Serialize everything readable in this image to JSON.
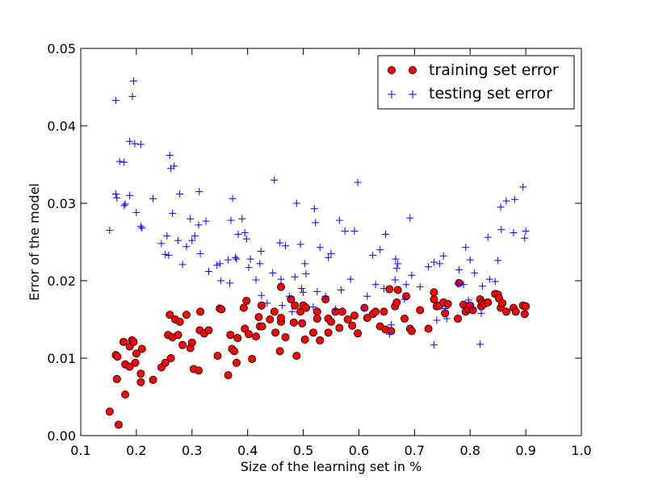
{
  "chart_data": {
    "type": "scatter",
    "title": "",
    "xlabel": "Size of the learning set in %",
    "ylabel": "Error of the model",
    "xlim": [
      0.1,
      1.0
    ],
    "ylim": [
      0.0,
      0.05
    ],
    "xticks": [
      0.1,
      0.2,
      0.3,
      0.4,
      0.5,
      0.6,
      0.7,
      0.8,
      0.9,
      1.0
    ],
    "yticks": [
      0.0,
      0.01,
      0.02,
      0.03,
      0.04,
      0.05
    ],
    "xtick_labels": [
      "0.1",
      "0.2",
      "0.3",
      "0.4",
      "0.5",
      "0.6",
      "0.7",
      "0.8",
      "0.9",
      "1.0"
    ],
    "ytick_labels": [
      "0.00",
      "0.01",
      "0.02",
      "0.03",
      "0.04",
      "0.05"
    ],
    "grid": false,
    "legend_position": "top-right",
    "series": [
      {
        "name": "training set error",
        "marker": "circle",
        "color": "#ff0000",
        "points": [
          [
            0.152,
            0.0031
          ],
          [
            0.168,
            0.0014
          ],
          [
            0.165,
            0.0073
          ],
          [
            0.163,
            0.0104
          ],
          [
            0.166,
            0.0102
          ],
          [
            0.177,
            0.0121
          ],
          [
            0.18,
            0.0053
          ],
          [
            0.18,
            0.0092
          ],
          [
            0.188,
            0.0115
          ],
          [
            0.188,
            0.0089
          ],
          [
            0.192,
            0.0123
          ],
          [
            0.195,
            0.0121
          ],
          [
            0.198,
            0.0094
          ],
          [
            0.2,
            0.0106
          ],
          [
            0.208,
            0.0069
          ],
          [
            0.208,
            0.008
          ],
          [
            0.21,
            0.0112
          ],
          [
            0.23,
            0.0072
          ],
          [
            0.245,
            0.0088
          ],
          [
            0.252,
            0.0094
          ],
          [
            0.257,
            0.013
          ],
          [
            0.26,
            0.0156
          ],
          [
            0.262,
            0.01
          ],
          [
            0.265,
            0.0127
          ],
          [
            0.27,
            0.015
          ],
          [
            0.275,
            0.013
          ],
          [
            0.278,
            0.0147
          ],
          [
            0.283,
            0.0117
          ],
          [
            0.29,
            0.0156
          ],
          [
            0.297,
            0.0113
          ],
          [
            0.3,
            0.012
          ],
          [
            0.303,
            0.0086
          ],
          [
            0.312,
            0.0084
          ],
          [
            0.314,
            0.0136
          ],
          [
            0.315,
            0.016
          ],
          [
            0.322,
            0.0132
          ],
          [
            0.33,
            0.0136
          ],
          [
            0.346,
            0.0103
          ],
          [
            0.35,
            0.0164
          ],
          [
            0.353,
            0.0163
          ],
          [
            0.365,
            0.0078
          ],
          [
            0.369,
            0.013
          ],
          [
            0.372,
            0.0112
          ],
          [
            0.376,
            0.0109
          ],
          [
            0.38,
            0.0094
          ],
          [
            0.382,
            0.0126
          ],
          [
            0.393,
            0.0165
          ],
          [
            0.395,
            0.0138
          ],
          [
            0.398,
            0.0174
          ],
          [
            0.402,
            0.0131
          ],
          [
            0.408,
            0.0099
          ],
          [
            0.415,
            0.0128
          ],
          [
            0.42,
            0.0153
          ],
          [
            0.422,
            0.0141
          ],
          [
            0.425,
            0.0168
          ],
          [
            0.426,
            0.0141
          ],
          [
            0.44,
            0.015
          ],
          [
            0.448,
            0.016
          ],
          [
            0.45,
            0.0133
          ],
          [
            0.458,
            0.0109
          ],
          [
            0.46,
            0.0192
          ],
          [
            0.46,
            0.0147
          ],
          [
            0.46,
            0.0152
          ],
          [
            0.468,
            0.0127
          ],
          [
            0.478,
            0.0176
          ],
          [
            0.483,
            0.0146
          ],
          [
            0.485,
            0.0168
          ],
          [
            0.488,
            0.0103
          ],
          [
            0.495,
            0.016
          ],
          [
            0.498,
            0.0145
          ],
          [
            0.5,
            0.0168
          ],
          [
            0.503,
            0.0124
          ],
          [
            0.505,
            0.0165
          ],
          [
            0.518,
            0.0133
          ],
          [
            0.525,
            0.016
          ],
          [
            0.525,
            0.0151
          ],
          [
            0.53,
            0.0123
          ],
          [
            0.54,
            0.0176
          ],
          [
            0.545,
            0.0133
          ],
          [
            0.545,
            0.0151
          ],
          [
            0.55,
            0.0147
          ],
          [
            0.558,
            0.016
          ],
          [
            0.565,
            0.0139
          ],
          [
            0.57,
            0.016
          ],
          [
            0.58,
            0.015
          ],
          [
            0.588,
            0.0142
          ],
          [
            0.592,
            0.0155
          ],
          [
            0.598,
            0.0132
          ],
          [
            0.61,
            0.0165
          ],
          [
            0.615,
            0.0152
          ],
          [
            0.625,
            0.0157
          ],
          [
            0.63,
            0.016
          ],
          [
            0.638,
            0.0141
          ],
          [
            0.645,
            0.016
          ],
          [
            0.648,
            0.0137
          ],
          [
            0.655,
            0.0189
          ],
          [
            0.658,
            0.0135
          ],
          [
            0.665,
            0.0167
          ],
          [
            0.668,
            0.0172
          ],
          [
            0.67,
            0.0188
          ],
          [
            0.682,
            0.0151
          ],
          [
            0.685,
            0.018
          ],
          [
            0.692,
            0.0138
          ],
          [
            0.695,
            0.0135
          ],
          [
            0.71,
            0.0162
          ],
          [
            0.725,
            0.0138
          ],
          [
            0.735,
            0.0176
          ],
          [
            0.735,
            0.0185
          ],
          [
            0.74,
            0.0167
          ],
          [
            0.745,
            0.0168
          ],
          [
            0.752,
            0.0172
          ],
          [
            0.755,
            0.0158
          ],
          [
            0.76,
            0.017
          ],
          [
            0.778,
            0.0151
          ],
          [
            0.78,
            0.0197
          ],
          [
            0.788,
            0.0169
          ],
          [
            0.792,
            0.016
          ],
          [
            0.795,
            0.0167
          ],
          [
            0.797,
            0.0163
          ],
          [
            0.8,
            0.0168
          ],
          [
            0.805,
            0.0162
          ],
          [
            0.818,
            0.0176
          ],
          [
            0.82,
            0.0167
          ],
          [
            0.822,
            0.0172
          ],
          [
            0.825,
            0.017
          ],
          [
            0.832,
            0.0172
          ],
          [
            0.845,
            0.0183
          ],
          [
            0.85,
            0.0182
          ],
          [
            0.852,
            0.0177
          ],
          [
            0.855,
            0.0165
          ],
          [
            0.858,
            0.0171
          ],
          [
            0.865,
            0.016
          ],
          [
            0.878,
            0.0165
          ],
          [
            0.882,
            0.016
          ],
          [
            0.895,
            0.0168
          ],
          [
            0.898,
            0.0157
          ],
          [
            0.9,
            0.0167
          ]
        ]
      },
      {
        "name": "testing set error",
        "marker": "plus",
        "color": "#0000ff",
        "points": [
          [
            0.152,
            0.0265
          ],
          [
            0.163,
            0.0433
          ],
          [
            0.163,
            0.0312
          ],
          [
            0.165,
            0.0307
          ],
          [
            0.17,
            0.0354
          ],
          [
            0.178,
            0.0353
          ],
          [
            0.178,
            0.0297
          ],
          [
            0.18,
            0.0299
          ],
          [
            0.188,
            0.038
          ],
          [
            0.188,
            0.031
          ],
          [
            0.193,
            0.0438
          ],
          [
            0.195,
            0.0458
          ],
          [
            0.197,
            0.0377
          ],
          [
            0.2,
            0.0288
          ],
          [
            0.208,
            0.0376
          ],
          [
            0.208,
            0.027
          ],
          [
            0.21,
            0.0268
          ],
          [
            0.23,
            0.0306
          ],
          [
            0.245,
            0.0248
          ],
          [
            0.252,
            0.0234
          ],
          [
            0.255,
            0.0258
          ],
          [
            0.258,
            0.0233
          ],
          [
            0.26,
            0.0362
          ],
          [
            0.262,
            0.0345
          ],
          [
            0.265,
            0.0287
          ],
          [
            0.268,
            0.0348
          ],
          [
            0.275,
            0.0252
          ],
          [
            0.278,
            0.0312
          ],
          [
            0.283,
            0.0221
          ],
          [
            0.29,
            0.0244
          ],
          [
            0.297,
            0.028
          ],
          [
            0.3,
            0.0252
          ],
          [
            0.305,
            0.0258
          ],
          [
            0.312,
            0.0272
          ],
          [
            0.313,
            0.0315
          ],
          [
            0.315,
            0.0235
          ],
          [
            0.325,
            0.0277
          ],
          [
            0.33,
            0.0212
          ],
          [
            0.345,
            0.022
          ],
          [
            0.35,
            0.0222
          ],
          [
            0.352,
            0.02
          ],
          [
            0.365,
            0.0227
          ],
          [
            0.368,
            0.0197
          ],
          [
            0.37,
            0.0278
          ],
          [
            0.373,
            0.0306
          ],
          [
            0.378,
            0.023
          ],
          [
            0.38,
            0.0228
          ],
          [
            0.383,
            0.026
          ],
          [
            0.39,
            0.028
          ],
          [
            0.395,
            0.0262
          ],
          [
            0.398,
            0.0254
          ],
          [
            0.402,
            0.0217
          ],
          [
            0.405,
            0.0228
          ],
          [
            0.415,
            0.0201
          ],
          [
            0.422,
            0.0222
          ],
          [
            0.424,
            0.0238
          ],
          [
            0.425,
            0.0181
          ],
          [
            0.435,
            0.0171
          ],
          [
            0.445,
            0.021
          ],
          [
            0.448,
            0.033
          ],
          [
            0.458,
            0.0249
          ],
          [
            0.46,
            0.0202
          ],
          [
            0.462,
            0.0168
          ],
          [
            0.468,
            0.0245
          ],
          [
            0.475,
            0.018
          ],
          [
            0.48,
            0.016
          ],
          [
            0.485,
            0.0205
          ],
          [
            0.488,
            0.03
          ],
          [
            0.495,
            0.0247
          ],
          [
            0.497,
            0.019
          ],
          [
            0.5,
            0.0185
          ],
          [
            0.503,
            0.0222
          ],
          [
            0.505,
            0.0209
          ],
          [
            0.518,
            0.0166
          ],
          [
            0.52,
            0.0293
          ],
          [
            0.522,
            0.0275
          ],
          [
            0.525,
            0.0186
          ],
          [
            0.53,
            0.0243
          ],
          [
            0.54,
            0.018
          ],
          [
            0.545,
            0.023
          ],
          [
            0.55,
            0.0235
          ],
          [
            0.558,
            0.0163
          ],
          [
            0.565,
            0.0278
          ],
          [
            0.568,
            0.0188
          ],
          [
            0.575,
            0.0264
          ],
          [
            0.585,
            0.0202
          ],
          [
            0.592,
            0.0264
          ],
          [
            0.598,
            0.0327
          ],
          [
            0.61,
            0.0165
          ],
          [
            0.615,
            0.018
          ],
          [
            0.625,
            0.0233
          ],
          [
            0.63,
            0.0195
          ],
          [
            0.638,
            0.024
          ],
          [
            0.645,
            0.019
          ],
          [
            0.648,
            0.026
          ],
          [
            0.655,
            0.0131
          ],
          [
            0.658,
            0.0143
          ],
          [
            0.665,
            0.0201
          ],
          [
            0.666,
            0.0228
          ],
          [
            0.668,
            0.0216
          ],
          [
            0.67,
            0.0222
          ],
          [
            0.682,
            0.0176
          ],
          [
            0.685,
            0.0195
          ],
          [
            0.692,
            0.0281
          ],
          [
            0.695,
            0.0207
          ],
          [
            0.71,
            0.0192
          ],
          [
            0.725,
            0.0218
          ],
          [
            0.735,
            0.0224
          ],
          [
            0.735,
            0.0117
          ],
          [
            0.74,
            0.0149
          ],
          [
            0.745,
            0.0222
          ],
          [
            0.752,
            0.0232
          ],
          [
            0.755,
            0.0164
          ],
          [
            0.758,
            0.0151
          ],
          [
            0.778,
            0.0196
          ],
          [
            0.78,
            0.0214
          ],
          [
            0.788,
            0.0195
          ],
          [
            0.792,
            0.0243
          ],
          [
            0.797,
            0.0175
          ],
          [
            0.8,
            0.0227
          ],
          [
            0.805,
            0.0165
          ],
          [
            0.808,
            0.021
          ],
          [
            0.818,
            0.0118
          ],
          [
            0.82,
            0.0158
          ],
          [
            0.822,
            0.0193
          ],
          [
            0.832,
            0.0256
          ],
          [
            0.835,
            0.0202
          ],
          [
            0.845,
            0.0199
          ],
          [
            0.85,
            0.0226
          ],
          [
            0.855,
            0.0295
          ],
          [
            0.856,
            0.0266
          ],
          [
            0.865,
            0.0303
          ],
          [
            0.878,
            0.0262
          ],
          [
            0.88,
            0.0305
          ],
          [
            0.895,
            0.0321
          ],
          [
            0.898,
            0.0255
          ],
          [
            0.9,
            0.0264
          ]
        ]
      }
    ]
  }
}
